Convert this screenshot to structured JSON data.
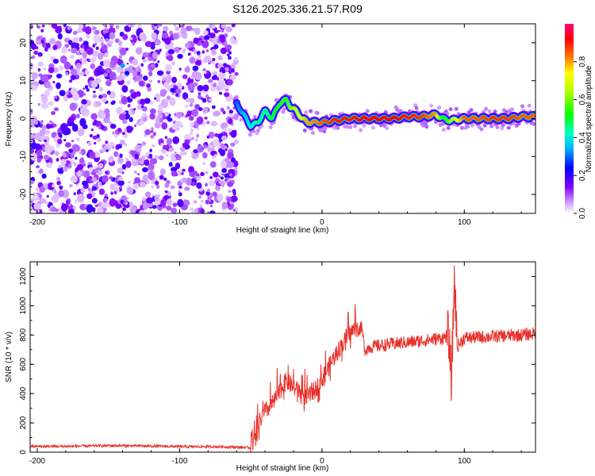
{
  "title": "S126.2025.336.21.57.R09",
  "chart_data": [
    {
      "type": "heatmap",
      "title": "S126.2025.336.21.57.R09",
      "xlabel": "Height of straight line (km)",
      "ylabel": "Frequency (Hz)",
      "xlim": [
        -205,
        150
      ],
      "ylim": [
        -25,
        25
      ],
      "xticks": [
        -200,
        -100,
        0,
        100
      ],
      "yticks": [
        -20,
        -10,
        0,
        10,
        20
      ],
      "colorbar": {
        "label": "Normalized spectral amplitude",
        "range": [
          0,
          1
        ],
        "ticks": [
          0.0,
          0.2,
          0.4,
          0.6,
          0.8
        ]
      },
      "noise_region_x": [
        -205,
        -60
      ],
      "signal_ridge": {
        "x": [
          -60,
          -55,
          -50,
          -45,
          -40,
          -35,
          -30,
          -25,
          -22,
          -18,
          -14,
          -10,
          -5,
          0,
          10,
          20,
          30,
          40,
          50,
          60,
          70,
          80,
          85,
          90,
          100,
          110,
          120,
          130,
          140,
          150
        ],
        "freq": [
          4,
          1,
          -2,
          -1,
          2,
          0,
          4,
          5,
          3,
          2,
          0,
          -1,
          -1,
          -1,
          -0.5,
          0,
          0,
          0,
          0,
          0.5,
          0.5,
          1,
          0,
          -0.5,
          0,
          0,
          0,
          0,
          0.5,
          0.5
        ],
        "amplitude": [
          0.3,
          0.35,
          0.4,
          0.45,
          0.45,
          0.5,
          0.55,
          0.55,
          0.6,
          0.7,
          0.75,
          0.8,
          0.82,
          0.85,
          0.9,
          0.9,
          0.92,
          0.92,
          0.92,
          0.9,
          0.88,
          0.8,
          0.5,
          0.6,
          0.85,
          0.85,
          0.88,
          0.88,
          0.85,
          0.85
        ]
      }
    },
    {
      "type": "line",
      "xlabel": "Height of straight line (km)",
      "ylabel": "SNR (10 * v/v)",
      "xlim": [
        -205,
        150
      ],
      "ylim": [
        0,
        1300
      ],
      "xticks": [
        -200,
        -100,
        0,
        100
      ],
      "yticks": [
        0,
        200,
        400,
        600,
        800,
        1000,
        1200
      ],
      "color": "#e8312b",
      "series": [
        {
          "name": "SNR",
          "x": [
            -205,
            -180,
            -150,
            -120,
            -100,
            -80,
            -60,
            -50,
            -46,
            -44,
            -40,
            -35,
            -30,
            -28,
            -25,
            -20,
            -15,
            -10,
            -5,
            0,
            5,
            10,
            15,
            20,
            25,
            28,
            30,
            35,
            50,
            70,
            85,
            89,
            91,
            93,
            95,
            100,
            120,
            140,
            150
          ],
          "values": [
            40,
            40,
            45,
            42,
            38,
            38,
            35,
            30,
            60,
            180,
            250,
            300,
            380,
            420,
            460,
            420,
            380,
            350,
            400,
            470,
            560,
            650,
            720,
            790,
            830,
            850,
            700,
            720,
            740,
            760,
            780,
            800,
            480,
            1200,
            720,
            780,
            790,
            800,
            810
          ]
        }
      ]
    }
  ]
}
